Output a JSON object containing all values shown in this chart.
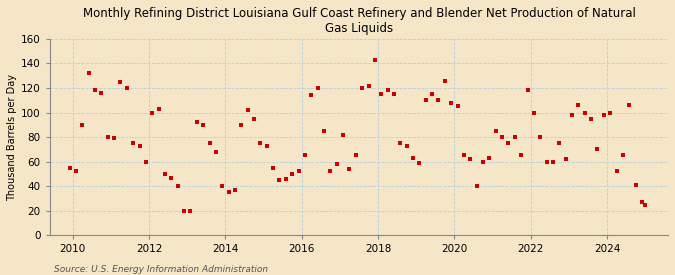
{
  "title": "Monthly Refining District Louisiana Gulf Coast Refinery and Blender Net Production of Natural\nGas Liquids",
  "ylabel": "Thousand Barrels per Day",
  "source": "Source: U.S. Energy Information Administration",
  "background_color": "#f5e6c8",
  "plot_bg_color": "#f5e6c8",
  "marker_color": "#cc0000",
  "ylim": [
    0,
    160
  ],
  "yticks": [
    0,
    20,
    40,
    60,
    80,
    100,
    120,
    140,
    160
  ],
  "xlim_start": 2009.4,
  "xlim_end": 2025.6,
  "xticks": [
    2010,
    2012,
    2014,
    2016,
    2018,
    2020,
    2022,
    2024
  ],
  "grid_color": "#b8cfe0",
  "spine_color": "#888888",
  "data": [
    [
      2009.917,
      55
    ],
    [
      2010.083,
      52
    ],
    [
      2010.25,
      90
    ],
    [
      2010.417,
      132
    ],
    [
      2010.583,
      118
    ],
    [
      2010.75,
      116
    ],
    [
      2010.917,
      80
    ],
    [
      2011.083,
      79
    ],
    [
      2011.25,
      125
    ],
    [
      2011.417,
      120
    ],
    [
      2011.583,
      75
    ],
    [
      2011.75,
      73
    ],
    [
      2011.917,
      60
    ],
    [
      2012.083,
      100
    ],
    [
      2012.25,
      103
    ],
    [
      2012.417,
      50
    ],
    [
      2012.583,
      47
    ],
    [
      2012.75,
      40
    ],
    [
      2012.917,
      20
    ],
    [
      2013.083,
      20
    ],
    [
      2013.25,
      92
    ],
    [
      2013.417,
      90
    ],
    [
      2013.583,
      75
    ],
    [
      2013.75,
      68
    ],
    [
      2013.917,
      40
    ],
    [
      2014.083,
      35
    ],
    [
      2014.25,
      37
    ],
    [
      2014.417,
      90
    ],
    [
      2014.583,
      102
    ],
    [
      2014.75,
      95
    ],
    [
      2014.917,
      75
    ],
    [
      2015.083,
      73
    ],
    [
      2015.25,
      55
    ],
    [
      2015.417,
      45
    ],
    [
      2015.583,
      46
    ],
    [
      2015.75,
      50
    ],
    [
      2015.917,
      52
    ],
    [
      2016.083,
      65
    ],
    [
      2016.25,
      114
    ],
    [
      2016.417,
      120
    ],
    [
      2016.583,
      85
    ],
    [
      2016.75,
      52
    ],
    [
      2016.917,
      58
    ],
    [
      2017.083,
      82
    ],
    [
      2017.25,
      54
    ],
    [
      2017.417,
      65
    ],
    [
      2017.583,
      120
    ],
    [
      2017.75,
      122
    ],
    [
      2017.917,
      143
    ],
    [
      2018.083,
      115
    ],
    [
      2018.25,
      118
    ],
    [
      2018.417,
      115
    ],
    [
      2018.583,
      75
    ],
    [
      2018.75,
      73
    ],
    [
      2018.917,
      63
    ],
    [
      2019.083,
      59
    ],
    [
      2019.25,
      110
    ],
    [
      2019.417,
      115
    ],
    [
      2019.583,
      110
    ],
    [
      2019.75,
      126
    ],
    [
      2019.917,
      108
    ],
    [
      2020.083,
      105
    ],
    [
      2020.25,
      65
    ],
    [
      2020.417,
      62
    ],
    [
      2020.583,
      40
    ],
    [
      2020.75,
      60
    ],
    [
      2020.917,
      63
    ],
    [
      2021.083,
      85
    ],
    [
      2021.25,
      80
    ],
    [
      2021.417,
      75
    ],
    [
      2021.583,
      80
    ],
    [
      2021.75,
      65
    ],
    [
      2021.917,
      118
    ],
    [
      2022.083,
      100
    ],
    [
      2022.25,
      80
    ],
    [
      2022.417,
      60
    ],
    [
      2022.583,
      60
    ],
    [
      2022.75,
      75
    ],
    [
      2022.917,
      62
    ],
    [
      2023.083,
      98
    ],
    [
      2023.25,
      106
    ],
    [
      2023.417,
      100
    ],
    [
      2023.583,
      95
    ],
    [
      2023.75,
      70
    ],
    [
      2023.917,
      98
    ],
    [
      2024.083,
      100
    ],
    [
      2024.25,
      52
    ],
    [
      2024.417,
      65
    ],
    [
      2024.583,
      106
    ],
    [
      2024.75,
      41
    ],
    [
      2024.917,
      27
    ],
    [
      2025.0,
      25
    ]
  ]
}
